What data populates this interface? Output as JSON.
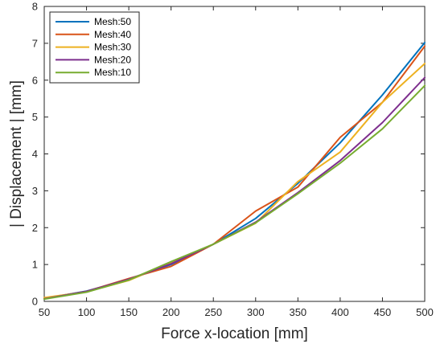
{
  "chart_data": {
    "type": "line",
    "title": "",
    "xlabel": "Force x-location [mm]",
    "ylabel": "| Displacement | [mm]",
    "xlim": [
      50,
      500
    ],
    "ylim": [
      0,
      8
    ],
    "xticks": [
      50,
      100,
      150,
      200,
      250,
      300,
      350,
      400,
      450,
      500
    ],
    "yticks": [
      0,
      1,
      2,
      3,
      4,
      5,
      6,
      7,
      8
    ],
    "grid": false,
    "legend_position": "top-left",
    "x": [
      50,
      100,
      150,
      200,
      250,
      300,
      350,
      400,
      450,
      500
    ],
    "series": [
      {
        "name": "Mesh:50",
        "color": "#0072BD",
        "values": [
          0.08,
          0.28,
          0.6,
          1.0,
          1.55,
          2.25,
          3.2,
          4.3,
          5.6,
          7.02
        ]
      },
      {
        "name": "Mesh:40",
        "color": "#D95319",
        "values": [
          0.08,
          0.27,
          0.62,
          0.95,
          1.55,
          2.45,
          3.1,
          4.45,
          5.4,
          6.92
        ]
      },
      {
        "name": "Mesh:30",
        "color": "#EDB120",
        "values": [
          0.1,
          0.26,
          0.57,
          1.05,
          1.55,
          2.12,
          3.25,
          4.05,
          5.4,
          6.45
        ]
      },
      {
        "name": "Mesh:20",
        "color": "#7E2F8E",
        "values": [
          0.07,
          0.27,
          0.6,
          1.02,
          1.55,
          2.15,
          2.95,
          3.82,
          4.85,
          6.07
        ]
      },
      {
        "name": "Mesh:10",
        "color": "#77AC30",
        "values": [
          0.06,
          0.25,
          0.58,
          1.08,
          1.55,
          2.13,
          2.92,
          3.75,
          4.68,
          5.85
        ]
      }
    ]
  }
}
